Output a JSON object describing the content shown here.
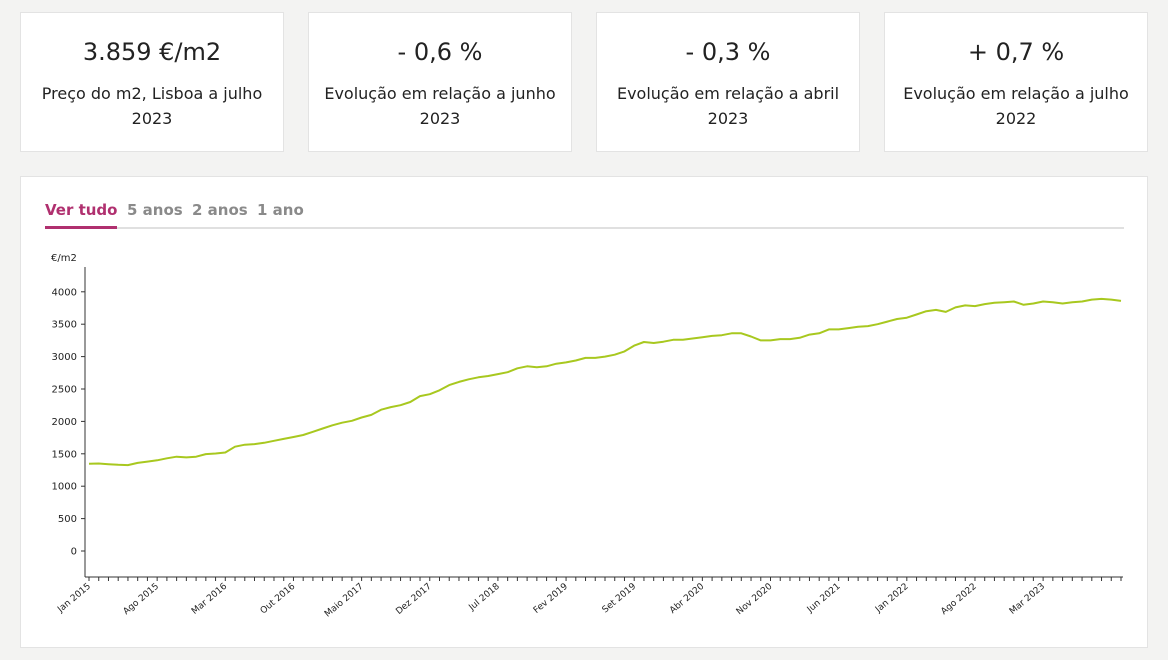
{
  "stats": [
    {
      "value": "3.859 €/m2",
      "label": "Preço do m2, Lisboa a julho 2023"
    },
    {
      "value": "- 0,6 %",
      "label": "Evolução em relação a junho 2023"
    },
    {
      "value": "- 0,3 %",
      "label": "Evolução em relação a abril 2023"
    },
    {
      "value": "+ 0,7 %",
      "label": "Evolução em relação a julho 2022"
    }
  ],
  "tabs": [
    {
      "label": "Ver tudo",
      "active": true
    },
    {
      "label": "5 anos",
      "active": false
    },
    {
      "label": "2 anos",
      "active": false
    },
    {
      "label": "1 ano",
      "active": false
    }
  ],
  "colors": {
    "accent": "#b0306f",
    "line": "#a8c81f",
    "inactive_tab": "#8a8a8a"
  },
  "chart_data": {
    "type": "line",
    "ylabel": "€/m2",
    "ylim": [
      0,
      4000
    ],
    "yticks": [
      0,
      500,
      1000,
      1500,
      2000,
      2500,
      3000,
      3500,
      4000
    ],
    "xtick_labels": [
      "Jan 2015",
      "Ago 2015",
      "Mar 2016",
      "Out 2016",
      "Maio 2017",
      "Dez 2017",
      "Jul 2018",
      "Fev 2019",
      "Set 2019",
      "Abr 2020",
      "Nov 2020",
      "Jun 2021",
      "Jan 2022",
      "Ago 2022",
      "Mar 2023"
    ],
    "grid": false,
    "series": [
      {
        "color": "#a8c81f",
        "x_start": "Jan 2015",
        "x_end": "Jul 2023",
        "values": [
          1345,
          1350,
          1340,
          1330,
          1325,
          1360,
          1380,
          1400,
          1430,
          1455,
          1445,
          1455,
          1495,
          1505,
          1520,
          1610,
          1640,
          1650,
          1670,
          1700,
          1730,
          1760,
          1790,
          1840,
          1890,
          1940,
          1980,
          2010,
          2060,
          2100,
          2180,
          2220,
          2250,
          2300,
          2390,
          2420,
          2480,
          2560,
          2610,
          2650,
          2680,
          2700,
          2730,
          2760,
          2820,
          2850,
          2835,
          2850,
          2890,
          2910,
          2940,
          2980,
          2980,
          3000,
          3030,
          3080,
          3170,
          3225,
          3210,
          3230,
          3260,
          3260,
          3280,
          3300,
          3320,
          3330,
          3360,
          3360,
          3310,
          3250,
          3250,
          3270,
          3270,
          3290,
          3340,
          3360,
          3420,
          3420,
          3440,
          3460,
          3470,
          3500,
          3540,
          3580,
          3600,
          3650,
          3700,
          3720,
          3690,
          3760,
          3790,
          3780,
          3810,
          3830,
          3840,
          3850,
          3800,
          3820,
          3850,
          3840,
          3820,
          3840,
          3850,
          3880,
          3890,
          3880,
          3859
        ]
      }
    ]
  }
}
